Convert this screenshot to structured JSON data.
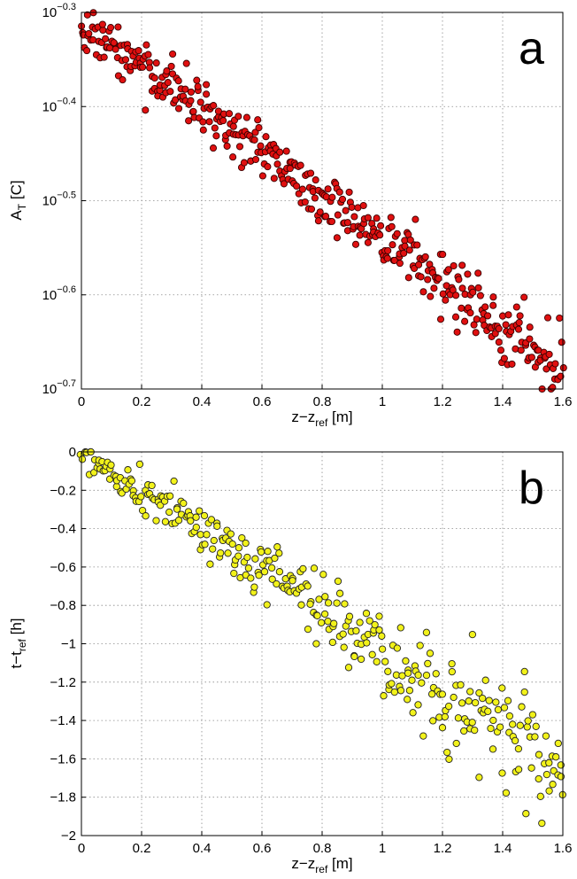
{
  "chart_data": [
    {
      "type": "scatter",
      "panel_label": "a",
      "xlabel": {
        "main": "z−z",
        "sub": "ref",
        "unit": " [m]"
      },
      "ylabel": {
        "main": "A",
        "sub": "T",
        "unit": " [C]"
      },
      "xlim": [
        0,
        1.6
      ],
      "ylim_log10": [
        -0.7,
        -0.3
      ],
      "yscale": "log",
      "x_ticks": [
        "0",
        "0.2",
        "0.4",
        "0.6",
        "0.8",
        "1",
        "1.2",
        "1.4",
        "1.6"
      ],
      "y_ticks": [
        {
          "base": "10",
          "exp": "−0.3"
        },
        {
          "base": "10",
          "exp": "−0.4"
        },
        {
          "base": "10",
          "exp": "−0.5"
        },
        {
          "base": "10",
          "exp": "−0.6"
        },
        {
          "base": "10",
          "exp": "−0.7"
        }
      ],
      "grid": true,
      "marker_color": "#e01010",
      "marker_edge": "#3a0000",
      "trend": {
        "x_start": 0,
        "log10_y_start": -0.31,
        "x_end": 1.6,
        "log10_y_end": -0.68,
        "n_points": 420,
        "spread_log10": 0.013
      }
    },
    {
      "type": "scatter",
      "panel_label": "b",
      "xlabel": {
        "main": "z−z",
        "sub": "ref",
        "unit": " [m]"
      },
      "ylabel": {
        "main": "t−t",
        "sub": "ref",
        "unit": " [h]"
      },
      "xlim": [
        0,
        1.6
      ],
      "ylim": [
        -2,
        0
      ],
      "x_ticks": [
        "0",
        "0.2",
        "0.4",
        "0.6",
        "0.8",
        "1",
        "1.2",
        "1.4",
        "1.6"
      ],
      "y_ticks": [
        "0",
        "−0.2",
        "−0.4",
        "−0.6",
        "−0.8",
        "−1",
        "−1.2",
        "−1.4",
        "−1.6",
        "−1.8",
        "−2"
      ],
      "grid": true,
      "marker_color": "#f2f21a",
      "marker_edge": "#222222",
      "trend": {
        "x_start": 0,
        "y_start": 0,
        "x_end": 1.6,
        "y_end": -1.65,
        "n_points": 330,
        "spread": 0.07
      }
    }
  ]
}
